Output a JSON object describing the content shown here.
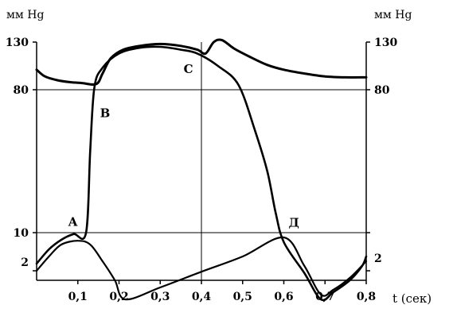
{
  "chart_data": {
    "type": "line",
    "title": "",
    "units": {
      "left": "мм Hg",
      "right": "мм Hg"
    },
    "xlabel": "t (сек)",
    "xlim": [
      0,
      0.8
    ],
    "x_ticks": [
      "0,1",
      "0,2",
      "0,3",
      "0,4",
      "0,5",
      "0,6",
      "0,7",
      "0,8"
    ],
    "y_ticks": [
      "2",
      "10",
      "80",
      "130"
    ],
    "grid": false,
    "series": [
      {
        "role": "aorta",
        "points": [
          [
            0,
            101
          ],
          [
            0.02,
            94
          ],
          [
            0.05,
            90
          ],
          [
            0.08,
            88
          ],
          [
            0.11,
            87
          ],
          [
            0.145,
            86
          ],
          [
            0.16,
            97
          ],
          [
            0.18,
            113
          ],
          [
            0.21,
            122
          ],
          [
            0.25,
            126
          ],
          [
            0.3,
            128
          ],
          [
            0.35,
            126
          ],
          [
            0.39,
            122
          ],
          [
            0.41,
            118
          ],
          [
            0.43,
            130
          ],
          [
            0.45,
            132
          ],
          [
            0.48,
            123
          ],
          [
            0.52,
            114
          ],
          [
            0.56,
            106
          ],
          [
            0.6,
            101
          ],
          [
            0.65,
            97
          ],
          [
            0.7,
            94
          ],
          [
            0.75,
            93
          ],
          [
            0.8,
            93
          ]
        ]
      },
      {
        "role": "ventricle",
        "points": [
          [
            0,
            3.5
          ],
          [
            0.03,
            6.5
          ],
          [
            0.06,
            8.5
          ],
          [
            0.09,
            9.7
          ],
          [
            0.12,
            10
          ],
          [
            0.13,
            50
          ],
          [
            0.14,
            82
          ],
          [
            0.16,
            103
          ],
          [
            0.2,
            118
          ],
          [
            0.25,
            124
          ],
          [
            0.3,
            125
          ],
          [
            0.35,
            122
          ],
          [
            0.39,
            118
          ],
          [
            0.44,
            105
          ],
          [
            0.49,
            85
          ],
          [
            0.53,
            60
          ],
          [
            0.56,
            40
          ],
          [
            0.58,
            20
          ],
          [
            0.6,
            8
          ],
          [
            0.65,
            1.5
          ],
          [
            0.69,
            -4
          ],
          [
            0.72,
            -2.5
          ],
          [
            0.76,
            0
          ],
          [
            0.79,
            3
          ],
          [
            0.8,
            5
          ]
        ]
      },
      {
        "role": "atrium",
        "points": [
          [
            0,
            2
          ],
          [
            0.03,
            5
          ],
          [
            0.06,
            7.5
          ],
          [
            0.1,
            8.3
          ],
          [
            0.13,
            7.5
          ],
          [
            0.16,
            4
          ],
          [
            0.19,
            0
          ],
          [
            0.215,
            -4
          ],
          [
            0.3,
            -1.5
          ],
          [
            0.4,
            1.8
          ],
          [
            0.5,
            5
          ],
          [
            0.6,
            9
          ],
          [
            0.65,
            3
          ],
          [
            0.69,
            -3
          ],
          [
            0.72,
            -2
          ],
          [
            0.76,
            0.5
          ],
          [
            0.8,
            4
          ]
        ]
      }
    ],
    "point_labels": [
      {
        "text": "A",
        "x": 0.1,
        "y": 11
      },
      {
        "text": "B",
        "x": 0.15,
        "y": 72
      },
      {
        "text": "C",
        "x": 0.38,
        "y": 109
      },
      {
        "text": "Д",
        "x": 0.6,
        "y": 11
      }
    ]
  }
}
